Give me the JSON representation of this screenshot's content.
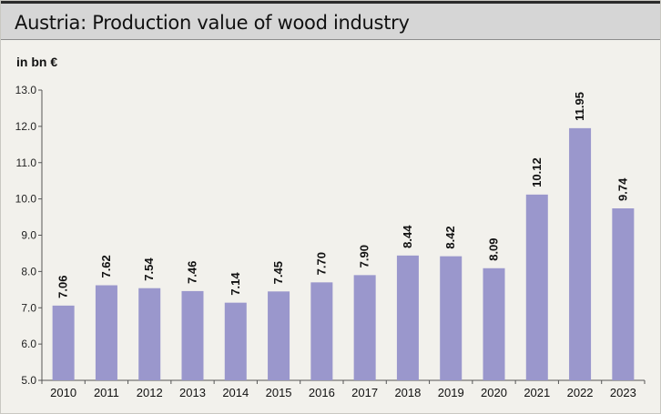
{
  "title": "Austria: Production value of wood industry",
  "unit_label": "in bn €",
  "chart_data": {
    "type": "bar",
    "title": "Austria: Production value of wood industry",
    "ylabel": "in bn €",
    "xlabel": "",
    "ylim": [
      5.0,
      13.0
    ],
    "yticks": [
      "5.0",
      "6.0",
      "7.0",
      "8.0",
      "9.0",
      "10.0",
      "11.0",
      "12.0",
      "13.0"
    ],
    "categories": [
      "2010",
      "2011",
      "2012",
      "2013",
      "2014",
      "2015",
      "2016",
      "2017",
      "2018",
      "2019",
      "2020",
      "2021",
      "2022",
      "2023"
    ],
    "values": [
      7.06,
      7.62,
      7.54,
      7.46,
      7.14,
      7.45,
      7.7,
      7.9,
      8.44,
      8.42,
      8.09,
      10.12,
      11.95,
      9.74
    ],
    "value_labels": [
      "7.06",
      "7.62",
      "7.54",
      "7.46",
      "7.14",
      "7.45",
      "7.70",
      "7.90",
      "8.44",
      "8.42",
      "8.09",
      "10.12",
      "11.95",
      "9.74"
    ],
    "bar_color": "#9a97cc",
    "grid": false,
    "legend": "none"
  }
}
